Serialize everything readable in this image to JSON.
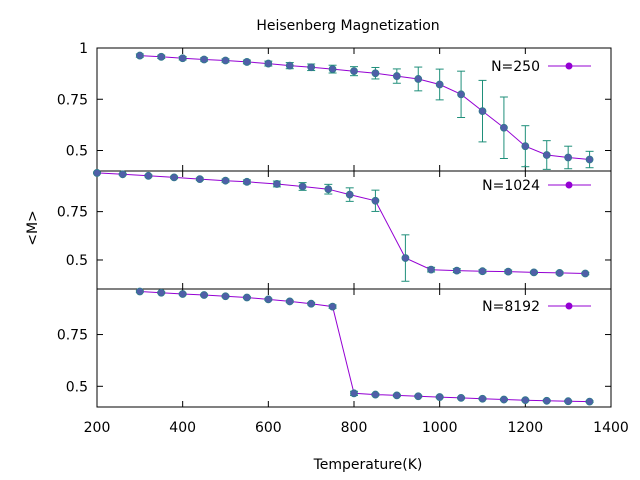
{
  "chart_data": {
    "type": "line",
    "title": "Heisenberg Magnetization",
    "xlabel": "Temperature(K)",
    "ylabel": "<M>",
    "xlim": [
      200,
      1400
    ],
    "xticks": [
      200,
      400,
      600,
      800,
      1000,
      1200,
      1400
    ],
    "x_tick_labels": [
      "200",
      "400",
      "600",
      "800",
      "1000",
      "1200",
      "1400"
    ],
    "colors": {
      "line": "#9400d3",
      "marker": "#4f5fa8",
      "errorbar": "#1f8f7a"
    },
    "grid": false,
    "legend_position": "top-right",
    "panels": [
      {
        "name": "N=250",
        "ylim": [
          0.4,
          1.0
        ],
        "yticks": [
          0.5,
          0.75,
          1
        ],
        "y_tick_labels": [
          "0.5",
          "0.75",
          "1"
        ],
        "x": [
          300,
          350,
          400,
          450,
          500,
          550,
          600,
          650,
          700,
          750,
          800,
          850,
          900,
          950,
          1000,
          1050,
          1100,
          1150,
          1200,
          1250,
          1300,
          1350
        ],
        "y": [
          0.963,
          0.957,
          0.95,
          0.944,
          0.939,
          0.932,
          0.924,
          0.914,
          0.906,
          0.897,
          0.887,
          0.877,
          0.863,
          0.849,
          0.822,
          0.774,
          0.692,
          0.611,
          0.521,
          0.478,
          0.466,
          0.456
        ],
        "err": [
          0.008,
          0.008,
          0.008,
          0.008,
          0.008,
          0.009,
          0.012,
          0.015,
          0.016,
          0.019,
          0.022,
          0.028,
          0.035,
          0.058,
          0.075,
          0.113,
          0.15,
          0.15,
          0.1,
          0.07,
          0.055,
          0.04
        ]
      },
      {
        "name": "N=1024",
        "ylim": [
          0.35,
          0.96
        ],
        "yticks": [
          0.5,
          0.75
        ],
        "y_tick_labels": [
          "0.5",
          "0.75"
        ],
        "x": [
          200,
          260,
          320,
          380,
          440,
          500,
          550,
          620,
          680,
          740,
          790,
          850,
          920,
          980,
          1040,
          1100,
          1160,
          1220,
          1280,
          1340
        ],
        "y": [
          0.95,
          0.943,
          0.935,
          0.927,
          0.918,
          0.91,
          0.904,
          0.893,
          0.88,
          0.866,
          0.838,
          0.806,
          0.51,
          0.45,
          0.445,
          0.442,
          0.44,
          0.436,
          0.433,
          0.43
        ],
        "err": [
          0.004,
          0.004,
          0.005,
          0.006,
          0.006,
          0.008,
          0.01,
          0.015,
          0.02,
          0.025,
          0.035,
          0.055,
          0.12,
          0.012,
          0.01,
          0.008,
          0.008,
          0.006,
          0.006,
          0.006
        ]
      },
      {
        "name": "N=8192",
        "ylim": [
          0.4,
          0.97
        ],
        "yticks": [
          0.5,
          0.75
        ],
        "y_tick_labels": [
          "0.5",
          "0.75"
        ],
        "x": [
          300,
          350,
          400,
          450,
          500,
          550,
          600,
          650,
          700,
          750,
          800,
          850,
          900,
          950,
          1000,
          1050,
          1100,
          1150,
          1200,
          1250,
          1300,
          1350
        ],
        "y": [
          0.958,
          0.952,
          0.946,
          0.941,
          0.935,
          0.929,
          0.92,
          0.91,
          0.899,
          0.885,
          0.466,
          0.46,
          0.456,
          0.452,
          0.448,
          0.444,
          0.44,
          0.436,
          0.433,
          0.43,
          0.428,
          0.426
        ],
        "err": [
          0.004,
          0.004,
          0.004,
          0.004,
          0.004,
          0.004,
          0.005,
          0.005,
          0.006,
          0.008,
          0.01,
          0.005,
          0.005,
          0.004,
          0.004,
          0.004,
          0.004,
          0.004,
          0.004,
          0.004,
          0.004,
          0.004
        ]
      }
    ]
  }
}
